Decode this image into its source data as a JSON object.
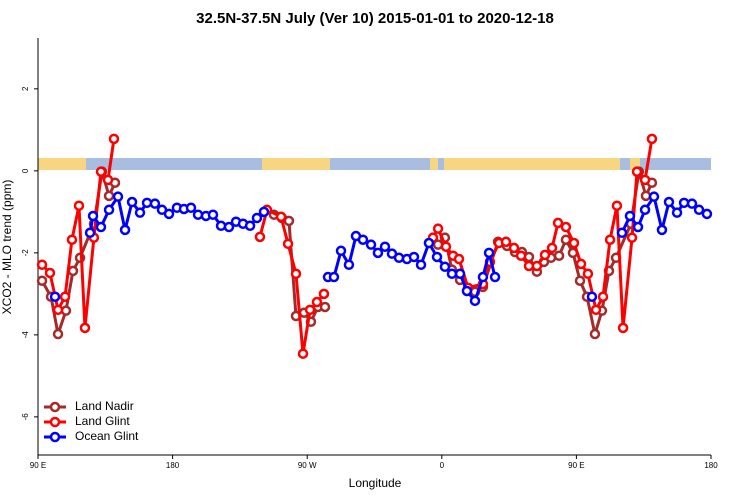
{
  "chart_data": {
    "type": "line",
    "title": "32.5N-37.5N July (Ver 10)   2015-01-01 to 2020-12-18",
    "x_label": "Longitude",
    "y_label": "XCO2 - MLO trend (ppm)",
    "xlim": [
      90,
      540
    ],
    "xticks": [
      {
        "value": 90,
        "label": "90 E"
      },
      180,
      {
        "value": 270,
        "label": "90 W"
      },
      {
        "value": 360,
        "label": "0"
      },
      {
        "value": 450,
        "label": "90 E"
      },
      {
        "value": 540,
        "label": "180"
      }
    ],
    "ylim": [
      -6.93,
      3.24
    ],
    "yticks": [
      -6,
      -4,
      -2,
      0,
      2
    ],
    "legend": "bottom-left",
    "series": [
      {
        "name": "Land Nadir",
        "color": "#a52a2a",
        "x": [
          92.7,
          98.7,
          103.4,
          108.7,
          113.4,
          118.1,
          127.4,
          132.8,
          137.5,
          141.5,
          null,
          247.8,
          253.1,
          257.8,
          262.5,
          267.9,
          272.5,
          277.2,
          281.9,
          null,
          357.5,
          362.1,
          366.8,
          372.2,
          382.2,
          387.5,
          397.6,
          403.6,
          408.9,
          413.6,
          418.3,
          423.6,
          428.3,
          433.0,
          438.4,
          443.0,
          447.7,
          452.4,
          457.1,
          462.4,
          467.1,
          471.8,
          476.5,
          486.5,
          491.8,
          496.5,
          500.5
        ],
        "values": [
          -2.68,
          -3.07,
          -3.98,
          -3.41,
          -2.44,
          -2.12,
          -1.29,
          -0.02,
          -0.61,
          -0.29,
          null,
          -1.07,
          -1.15,
          -1.22,
          -3.54,
          -3.46,
          -3.68,
          -3.32,
          -3.32,
          null,
          -1.8,
          -1.63,
          -2.41,
          -2.66,
          -2.95,
          -2.83,
          -1.73,
          -1.83,
          -1.98,
          -1.98,
          -2.1,
          -2.46,
          -2.22,
          -2.12,
          -2.07,
          -1.68,
          -2.0,
          -2.68,
          -3.07,
          -3.98,
          -3.41,
          -2.44,
          -2.12,
          -1.29,
          -0.02,
          -0.61,
          -0.29
        ]
      },
      {
        "name": "Land Glint",
        "color": "#ff0000",
        "x": [
          92.7,
          98.0,
          103.4,
          108.1,
          112.7,
          117.4,
          121.4,
          127.4,
          132.1,
          136.8,
          140.8,
          null,
          238.4,
          243.1,
          252.5,
          257.2,
          262.5,
          267.2,
          271.9,
          276.5,
          281.2,
          null,
          354.1,
          357.5,
          362.8,
          367.5,
          371.5,
          377.5,
          387.5,
          392.2,
          398.2,
          402.9,
          408.3,
          413.0,
          418.3,
          423.6,
          429.0,
          433.7,
          437.7,
          443.0,
          448.4,
          453.1,
          457.7,
          463.1,
          467.8,
          472.5,
          477.1,
          481.2,
          487.2,
          490.5,
          495.9,
          500.5
        ],
        "values": [
          -2.29,
          -2.49,
          -3.39,
          -3.07,
          -1.68,
          -0.85,
          -3.83,
          -1.63,
          -0.02,
          -0.22,
          0.78,
          null,
          -1.61,
          -0.95,
          -1.12,
          -1.78,
          -2.51,
          -4.46,
          -3.39,
          -3.2,
          -3.0,
          null,
          -1.63,
          -1.41,
          -1.85,
          -2.07,
          -2.15,
          -2.85,
          -2.76,
          -2.22,
          -1.76,
          -1.73,
          -1.88,
          -2.07,
          -2.32,
          -2.32,
          -2.05,
          -1.88,
          -1.27,
          -1.37,
          -1.76,
          -2.27,
          -2.51,
          -3.39,
          -3.07,
          -1.68,
          -0.85,
          -3.83,
          -1.63,
          -0.02,
          -0.22,
          0.78
        ]
      },
      {
        "name": "Ocean Glint",
        "color": "#0000ff",
        "x": [
          101.4,
          null,
          124.8,
          126.8,
          132.1,
          137.5,
          143.5,
          148.2,
          152.9,
          158.2,
          162.9,
          168.2,
          172.9,
          177.6,
          182.9,
          187.6,
          192.3,
          197.0,
          202.3,
          207.0,
          212.4,
          217.7,
          222.4,
          227.1,
          231.8,
          236.4,
          241.1,
          null,
          283.9,
          287.9,
          292.6,
          297.9,
          302.6,
          307.3,
          312.7,
          317.3,
          322.0,
          326.7,
          331.4,
          336.7,
          341.4,
          346.1,
          351.4,
          356.8,
          362.1,
          366.8,
          372.2,
          376.8,
          382.2,
          387.5,
          391.6,
          395.6,
          null,
          460.4,
          null,
          480.5,
          485.8,
          491.2,
          495.9,
          501.9,
          507.2,
          511.9,
          517.3,
          522.0,
          527.3,
          532.0,
          537.3
        ],
        "values": [
          -3.07,
          null,
          -1.51,
          -1.1,
          -1.37,
          -0.95,
          -0.63,
          -1.44,
          -0.76,
          -1.02,
          -0.78,
          -0.8,
          -0.95,
          -1.05,
          -0.9,
          -0.93,
          -0.9,
          -1.07,
          -1.1,
          -1.07,
          -1.34,
          -1.37,
          -1.24,
          -1.29,
          -1.34,
          -1.15,
          -1.0,
          null,
          -2.59,
          -2.59,
          -1.95,
          -2.29,
          -1.59,
          -1.68,
          -1.8,
          -2.0,
          -1.85,
          -2.02,
          -2.12,
          -2.15,
          -2.1,
          -2.29,
          -1.76,
          -2.1,
          -2.34,
          -2.51,
          -2.51,
          -2.93,
          -3.17,
          -2.59,
          -2.0,
          -2.59,
          null,
          -3.07,
          null,
          -1.51,
          -1.1,
          -1.37,
          -0.95,
          -0.63,
          -1.44,
          -0.76,
          -1.02,
          -0.78,
          -0.8,
          -0.95,
          -1.05
        ]
      }
    ]
  }
}
